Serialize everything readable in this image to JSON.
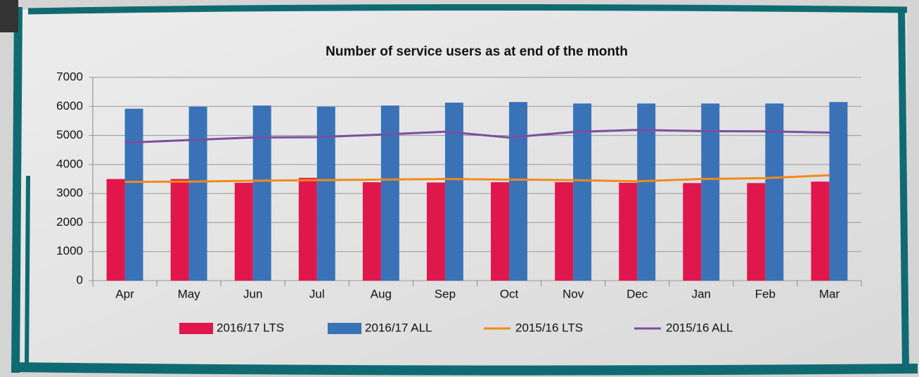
{
  "chart_data": {
    "type": "bar_line",
    "title": "Number of service users as at end of the month",
    "categories": [
      "Apr",
      "May",
      "Jun",
      "Jul",
      "Aug",
      "Sep",
      "Oct",
      "Nov",
      "Dec",
      "Jan",
      "Feb",
      "Mar"
    ],
    "series": [
      {
        "name": "2016/17 LTS",
        "type": "bar",
        "color": "#e0174b",
        "values": [
          3500,
          3500,
          3370,
          3540,
          3390,
          3380,
          3390,
          3390,
          3370,
          3360,
          3360,
          3410
        ]
      },
      {
        "name": "2016/17 ALL",
        "type": "bar",
        "color": "#3a72b8",
        "values": [
          5920,
          5990,
          6030,
          5990,
          6030,
          6130,
          6150,
          6100,
          6100,
          6100,
          6100,
          6150
        ]
      },
      {
        "name": "2015/16 LTS",
        "type": "line",
        "color": "#f28a1a",
        "values": [
          3400,
          3410,
          3440,
          3460,
          3480,
          3500,
          3480,
          3460,
          3420,
          3500,
          3530,
          3630
        ]
      },
      {
        "name": "2015/16 ALL",
        "type": "line",
        "color": "#7b4ea0",
        "values": [
          4750,
          4840,
          4930,
          4940,
          5030,
          5130,
          4930,
          5120,
          5190,
          5150,
          5140,
          5100
        ]
      }
    ],
    "ylim": [
      0,
      7000
    ],
    "yticks": [
      0,
      1000,
      2000,
      3000,
      4000,
      5000,
      6000,
      7000
    ],
    "grid": true,
    "legend": "bottom"
  }
}
